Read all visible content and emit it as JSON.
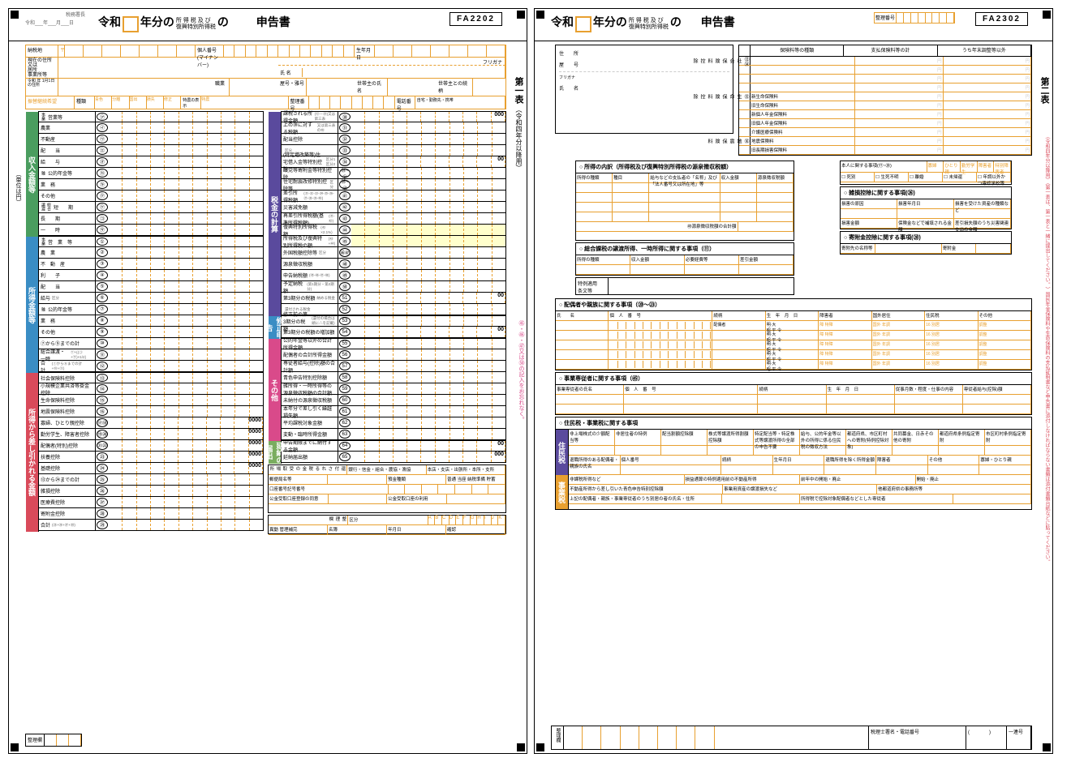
{
  "page1": {
    "form_id": "FA2202",
    "header_small": "税務署長",
    "header_era": "令和___年___月___日",
    "era": "令和",
    "title_suffix": "年分の",
    "title_sub1": "所 得 税 及 び",
    "title_sub2": "復興特別所得税",
    "title_middle": "の",
    "title_main": "申告書",
    "side_title": "第一表",
    "side_sub": "（令和四年分以降用）",
    "side_note": "㊺・㊻・㊼又は㊿の記入をお忘れなく。",
    "side_unit": "（単位は円）",
    "top": {
      "r1_1": "納税地",
      "r2_1": "現在の住所",
      "r2_2": "又は",
      "r2_3": "居所",
      "r2_4": "事業所等",
      "kojin": "個人番号\n(マイナンバー)",
      "birth": "生年月日",
      "furi": "フリガナ",
      "shimei": "氏 名",
      "r5_1": "令和\n年\n1月1日\nの住所",
      "shoku": "職業",
      "yago": "屋号・雅号",
      "setai": "世帯主の氏名",
      "tsuzuki": "世帯主との続柄",
      "shurui": "種類",
      "seiri": "整理番号",
      "tel": "電話番号",
      "tel2": "自宅・勤務先・携帯"
    },
    "sec_income": {
      "tab": "収入金額等",
      "rows": [
        {
          "l": "営業等",
          "s": "事業",
          "n": "㋐"
        },
        {
          "l": "農業",
          "s": "",
          "n": "㋑"
        },
        {
          "l": "不動産",
          "n": "㋒"
        },
        {
          "l": "配　　当",
          "n": "㋓"
        },
        {
          "l": "給　　与",
          "n": "㋔"
        },
        {
          "l": "公的年金等",
          "s": "雑",
          "n": "㋕"
        },
        {
          "l": "業　務",
          "n": "㋖"
        },
        {
          "l": "その他",
          "n": "㋗"
        },
        {
          "l": "短　　期",
          "s": "総合譲渡",
          "n": "㋘"
        },
        {
          "l": "長　　期",
          "n": "㋙"
        },
        {
          "l": "一　　時",
          "n": "㋚"
        }
      ]
    },
    "sec_shotoku": {
      "tab": "所得金額等",
      "rows": [
        {
          "l": "営　業　等",
          "s": "事業",
          "n": "①"
        },
        {
          "l": "農　業",
          "n": "②"
        },
        {
          "l": "不　動　産",
          "n": "③"
        },
        {
          "l": "利　　子",
          "n": "④"
        },
        {
          "l": "配　　当",
          "n": "⑤"
        },
        {
          "l": "給与",
          "n": "⑥",
          "sub": "区分"
        },
        {
          "l": "公的年金等",
          "s": "雑",
          "n": "⑦"
        },
        {
          "l": "業　務",
          "n": "⑧"
        },
        {
          "l": "その他",
          "n": "⑨"
        },
        {
          "l": "⑦から⑨までの計",
          "n": "⑩"
        },
        {
          "l": "総合譲渡・一時",
          "n": "⑪",
          "sub": "㋘+{(㋙+㋚)×1/2}"
        },
        {
          "l": "合計",
          "n": "⑫",
          "sub": "(①から⑥までの計+⑩+⑪)"
        }
      ]
    },
    "sec_deduct": {
      "tab": "所得から差し引かれる金額",
      "rows": [
        {
          "l": "社会保険料控除",
          "n": "⑬"
        },
        {
          "l": "小規模企業共済等掛金控除",
          "n": "⑭"
        },
        {
          "l": "生命保険料控除",
          "n": "⑮"
        },
        {
          "l": "地震保険料控除",
          "n": "⑯"
        },
        {
          "l": "寡婦、ひとり親控除",
          "n": "⑰⑱",
          "z": "0000"
        },
        {
          "l": "勤労学生、障害者控除",
          "n": "⑲⑳",
          "z": "0000"
        },
        {
          "l": "配偶者(特別)控除",
          "n": "㉑㉒",
          "z": "0000"
        },
        {
          "l": "扶養控除",
          "n": "㉓",
          "z": "0000"
        },
        {
          "l": "基礎控除",
          "n": "㉔",
          "z": "0000"
        },
        {
          "l": "⑬から㉔までの計",
          "n": "㉕"
        },
        {
          "l": "雑損控除",
          "n": "㉖"
        },
        {
          "l": "医療費控除",
          "n": "㉗"
        },
        {
          "l": "寄附金控除",
          "n": "㉘"
        },
        {
          "l": "合計",
          "n": "㉙",
          "sub": "(㉕+㉖+㉗+㉘)"
        }
      ]
    },
    "sec_tax": {
      "tab": "税金の計算",
      "rows": [
        {
          "l": "課税される所得金額",
          "n": "㉚",
          "z": "000",
          "sub": "(⑫－㉙)又は第三表"
        },
        {
          "l": "上の㉚に対する税額",
          "n": "㉛",
          "sub": "又は第三表の㊵"
        },
        {
          "l": "配当控除",
          "n": "㉜"
        },
        {
          "l": "",
          "n": "㉝",
          "sub": "区分"
        },
        {
          "l": "(特定増改築等)住宅借入金等特別控除",
          "n": "㉞",
          "z": "00",
          "sub": "区分1 区分2"
        },
        {
          "l": "政党等寄附金等特別控除",
          "n": "㉟~㊲"
        },
        {
          "l": "住宅耐震改修特別控除等",
          "n": "㊳~㊵",
          "sub": "区分"
        },
        {
          "l": "差引所得税額",
          "n": "㊶",
          "sub": "(㉛-㉜-㉝-㉞-㉟-㊱-㊲-㊳-㊴-㊵)"
        },
        {
          "l": "災害減免額",
          "n": "㊷"
        },
        {
          "l": "再差引所得税額(基準所得税額)",
          "n": "㊸",
          "sub": "(㊶-㊷)"
        },
        {
          "l": "復興特別所得税額",
          "n": "㊹",
          "hl": true,
          "sub": "(㊸×2.1%)"
        },
        {
          "l": "所得税及び復興特別所得税の額",
          "n": "㊺",
          "hl": true,
          "sub": "(㊸+㊹)"
        },
        {
          "l": "外国税額控除等",
          "n": "㊻㊼",
          "sub": "区分"
        },
        {
          "l": "源泉徴収税額",
          "n": "㊽"
        },
        {
          "l": "申告納税額",
          "n": "㊾",
          "sub": "(㊺-㊻-㊼-㊽)"
        },
        {
          "l": "予定納税額",
          "n": "㊿",
          "sub": "(第1期分・第2期分)"
        },
        {
          "l": "第3期分の税額",
          "n": "51",
          "sub": "納める税金",
          "z": "00"
        },
        {
          "l": "",
          "n": "52",
          "sub": "還付される税金"
        }
      ]
    },
    "sec_correct": {
      "tab": "修正申告",
      "rows": [
        {
          "l": "修正前の第3期分の税額",
          "n": "53",
          "sub": "(還付の場合は頭に△を記載)"
        },
        {
          "l": "第3期分の税額の増加額",
          "n": "54",
          "z": "00"
        }
      ]
    },
    "sec_other": {
      "tab": "その他",
      "rows": [
        {
          "l": "公的年金等以外の合計所得金額",
          "n": "55"
        },
        {
          "l": "配偶者の合計所得金額",
          "n": "56"
        },
        {
          "l": "専従者給与(控除)額の合計額",
          "n": "57"
        },
        {
          "l": "青色申告特別控除額",
          "n": "58"
        },
        {
          "l": "雑所得・一時所得等の源泉徴収税額の合計額",
          "n": "59"
        },
        {
          "l": "未納付の源泉徴収税額",
          "n": "60"
        },
        {
          "l": "本年分で差し引く繰越損失額",
          "n": "61"
        },
        {
          "l": "平均課税対象金額",
          "n": "62"
        },
        {
          "l": "変動・臨時所得金額",
          "n": "63"
        }
      ]
    },
    "sec_defer": {
      "tab": "延納の届出",
      "rows": [
        {
          "l": "申告期限までに納付する金額",
          "n": "64",
          "z": "00"
        },
        {
          "l": "延納届出額",
          "n": "65",
          "z": "000"
        }
      ]
    },
    "refund": {
      "l1": "還付される税金の受取場所",
      "l2": "郵便局名等",
      "l3": "預金種類",
      "l4": "銀行・信金・組合・農協・漁協",
      "l5": "本店・支店・出張所・本所・支所",
      "l6": "普通 当座 納税準備 貯蓄",
      "l7": "口座番号記号番号",
      "l8": "公金受取口座登録の同意",
      "l9": "公金受取口座の利用"
    },
    "bottom": {
      "seiri": "整理欄",
      "kubun": "区分",
      "ri": "理",
      "ikan": "欄"
    }
  },
  "page2": {
    "form_id": "FA2302",
    "era": "令和",
    "title_suffix": "年分の",
    "title_sub1": "所 得 税 及 び",
    "title_sub2": "復興特別所得税",
    "title_middle": "の",
    "title_main": "申告書",
    "seiri_lbl": "整理番号",
    "side_title": "第二表",
    "side_sub": "（令和四年分以降用）（第一表は、第一表と一緒に提出してください。）国民年金保険料や生命保険料の支払証明書など申告書に添付しなければならない書類は添付書類台紙などに貼ってください。",
    "addr": {
      "l1": "住　　所",
      "l2": "屋　　号",
      "l3": "フリガナ",
      "l4": "氏　　名"
    },
    "insurance": {
      "h1": "保険料等の種類",
      "h2": "支払保険料等の計",
      "h3": "うち年末調整等以外",
      "vlabels": [
        "⑬⑭社会保険料控除",
        "⑮生命保険料控除",
        "⑯地震保険料"
      ],
      "rows": [
        "",
        "",
        "",
        "",
        "新生命保険料",
        "旧生命保険料",
        "新個人年金保険料",
        "旧個人年金保険料",
        "介護医療保険料",
        "地震保険料",
        "旧長期損害保険料"
      ]
    },
    "person": {
      "title": "本人に関する事項(⑰~⑳)",
      "items": [
        "寡婦",
        "ひとり親",
        "勤労学生",
        "障害者",
        "特別障害者"
      ],
      "checks": [
        "死別",
        "生死不明",
        "離婚",
        "未帰還",
        "年調以外かつ専修学校等"
      ]
    },
    "sec_uchiwake": {
      "title": "○ 所得の内訳（所得税及び復興特別所得税の源泉徴収税額）",
      "headers": [
        "所得の種類",
        "種目",
        "給与などの支払者の「名称」及び「法人番号又は所在地」等",
        "収入金額",
        "源泉徴収税額"
      ],
      "total": "㊽源泉徴収税額の合計額"
    },
    "sec_zasson": {
      "title": "○ 雑損控除に関する事項(㉖)",
      "headers": [
        "損害の原因",
        "損害年月日",
        "損害を受けた資産の種類など"
      ],
      "rows": [
        "損害金額",
        "保険金などで補填される金額",
        "差引損失額のうち災害関連支出の金額"
      ]
    },
    "sec_sogo": {
      "title": "○ 総合課税の譲渡所得、一時所得に関する事項（⑪）",
      "headers": [
        "所得の種類",
        "収入金額",
        "必要経費等",
        "差引金額"
      ]
    },
    "sec_kifu": {
      "title": "○ 寄附金控除に関する事項(㉘)",
      "l1": "寄附先の名称等",
      "l2": "寄附金"
    },
    "tokrei": {
      "l1": "特例適用",
      "l2": "条文等"
    },
    "sec_haigu": {
      "title": "○ 配偶者や親族に関する事項（⑳～㉓）",
      "headers": [
        "氏　　名",
        "個　人　番　号",
        "続柄",
        "生　年　月　日",
        "障害者",
        "国外居住",
        "住民税",
        "その他"
      ]
    },
    "sec_jigyou": {
      "title": "○ 事業専従者に関する事項（㊺）",
      "headers": [
        "事業専従者の氏名",
        "個　人　番　号",
        "続柄",
        "生　年　月　日",
        "従事月数・程度・仕事の内容",
        "専従者給与(控除)額"
      ]
    },
    "sec_jumin": {
      "title": "○ 住民税・事業税に関する事項",
      "tab1": "住民税",
      "tab2": "事業税",
      "headers": [
        "非上場株式の少額配当等",
        "非居住者の特例",
        "配当割額控除額",
        "株式等譲渡所得割額控除額",
        "特定配当等・特定株式等譲渡所得の全部の申告不要",
        "給与、公的年金等以外の所得に係る住民税の徴収方法",
        "都道府県、市区町村への寄附(特例控除対象)",
        "共同募金、日赤その他の寄附",
        "都道府県条例指定寄附",
        "市区町村条例指定寄附"
      ],
      "r2": [
        "退職所得のある配偶者・親族の氏名",
        "個人番号",
        "続柄",
        "生年月日",
        "退職所得を除く所得金額",
        "障害者",
        "その他",
        "寡婦・ひとり親"
      ],
      "r3": [
        "非課税所得など",
        "損益通算の特例適用前の不動産所得",
        "前年中の開始・廃止",
        "開始・廃止"
      ],
      "r4": [
        "不動産所得から差し引いた青色申告特別控除額",
        "事業用資産の譲渡損失など",
        "他都道府県の事務所等"
      ],
      "r5": "上記の配偶者・親族・事業専従者のうち別居の者の氏名・住所",
      "r6": "所得税で控除対象配偶者などとした専従者"
    },
    "bottom": {
      "l1": "整理欄",
      "l2": "税理士署名・電話番号",
      "l3": "一連号"
    }
  },
  "colors": {
    "orange": "#e8a030",
    "green": "#4a9d5f",
    "blue": "#3a8dc4",
    "red": "#d94a5a",
    "purple": "#5a4a9d",
    "pink": "#d94a8a",
    "lgreen": "#7aad5f"
  }
}
